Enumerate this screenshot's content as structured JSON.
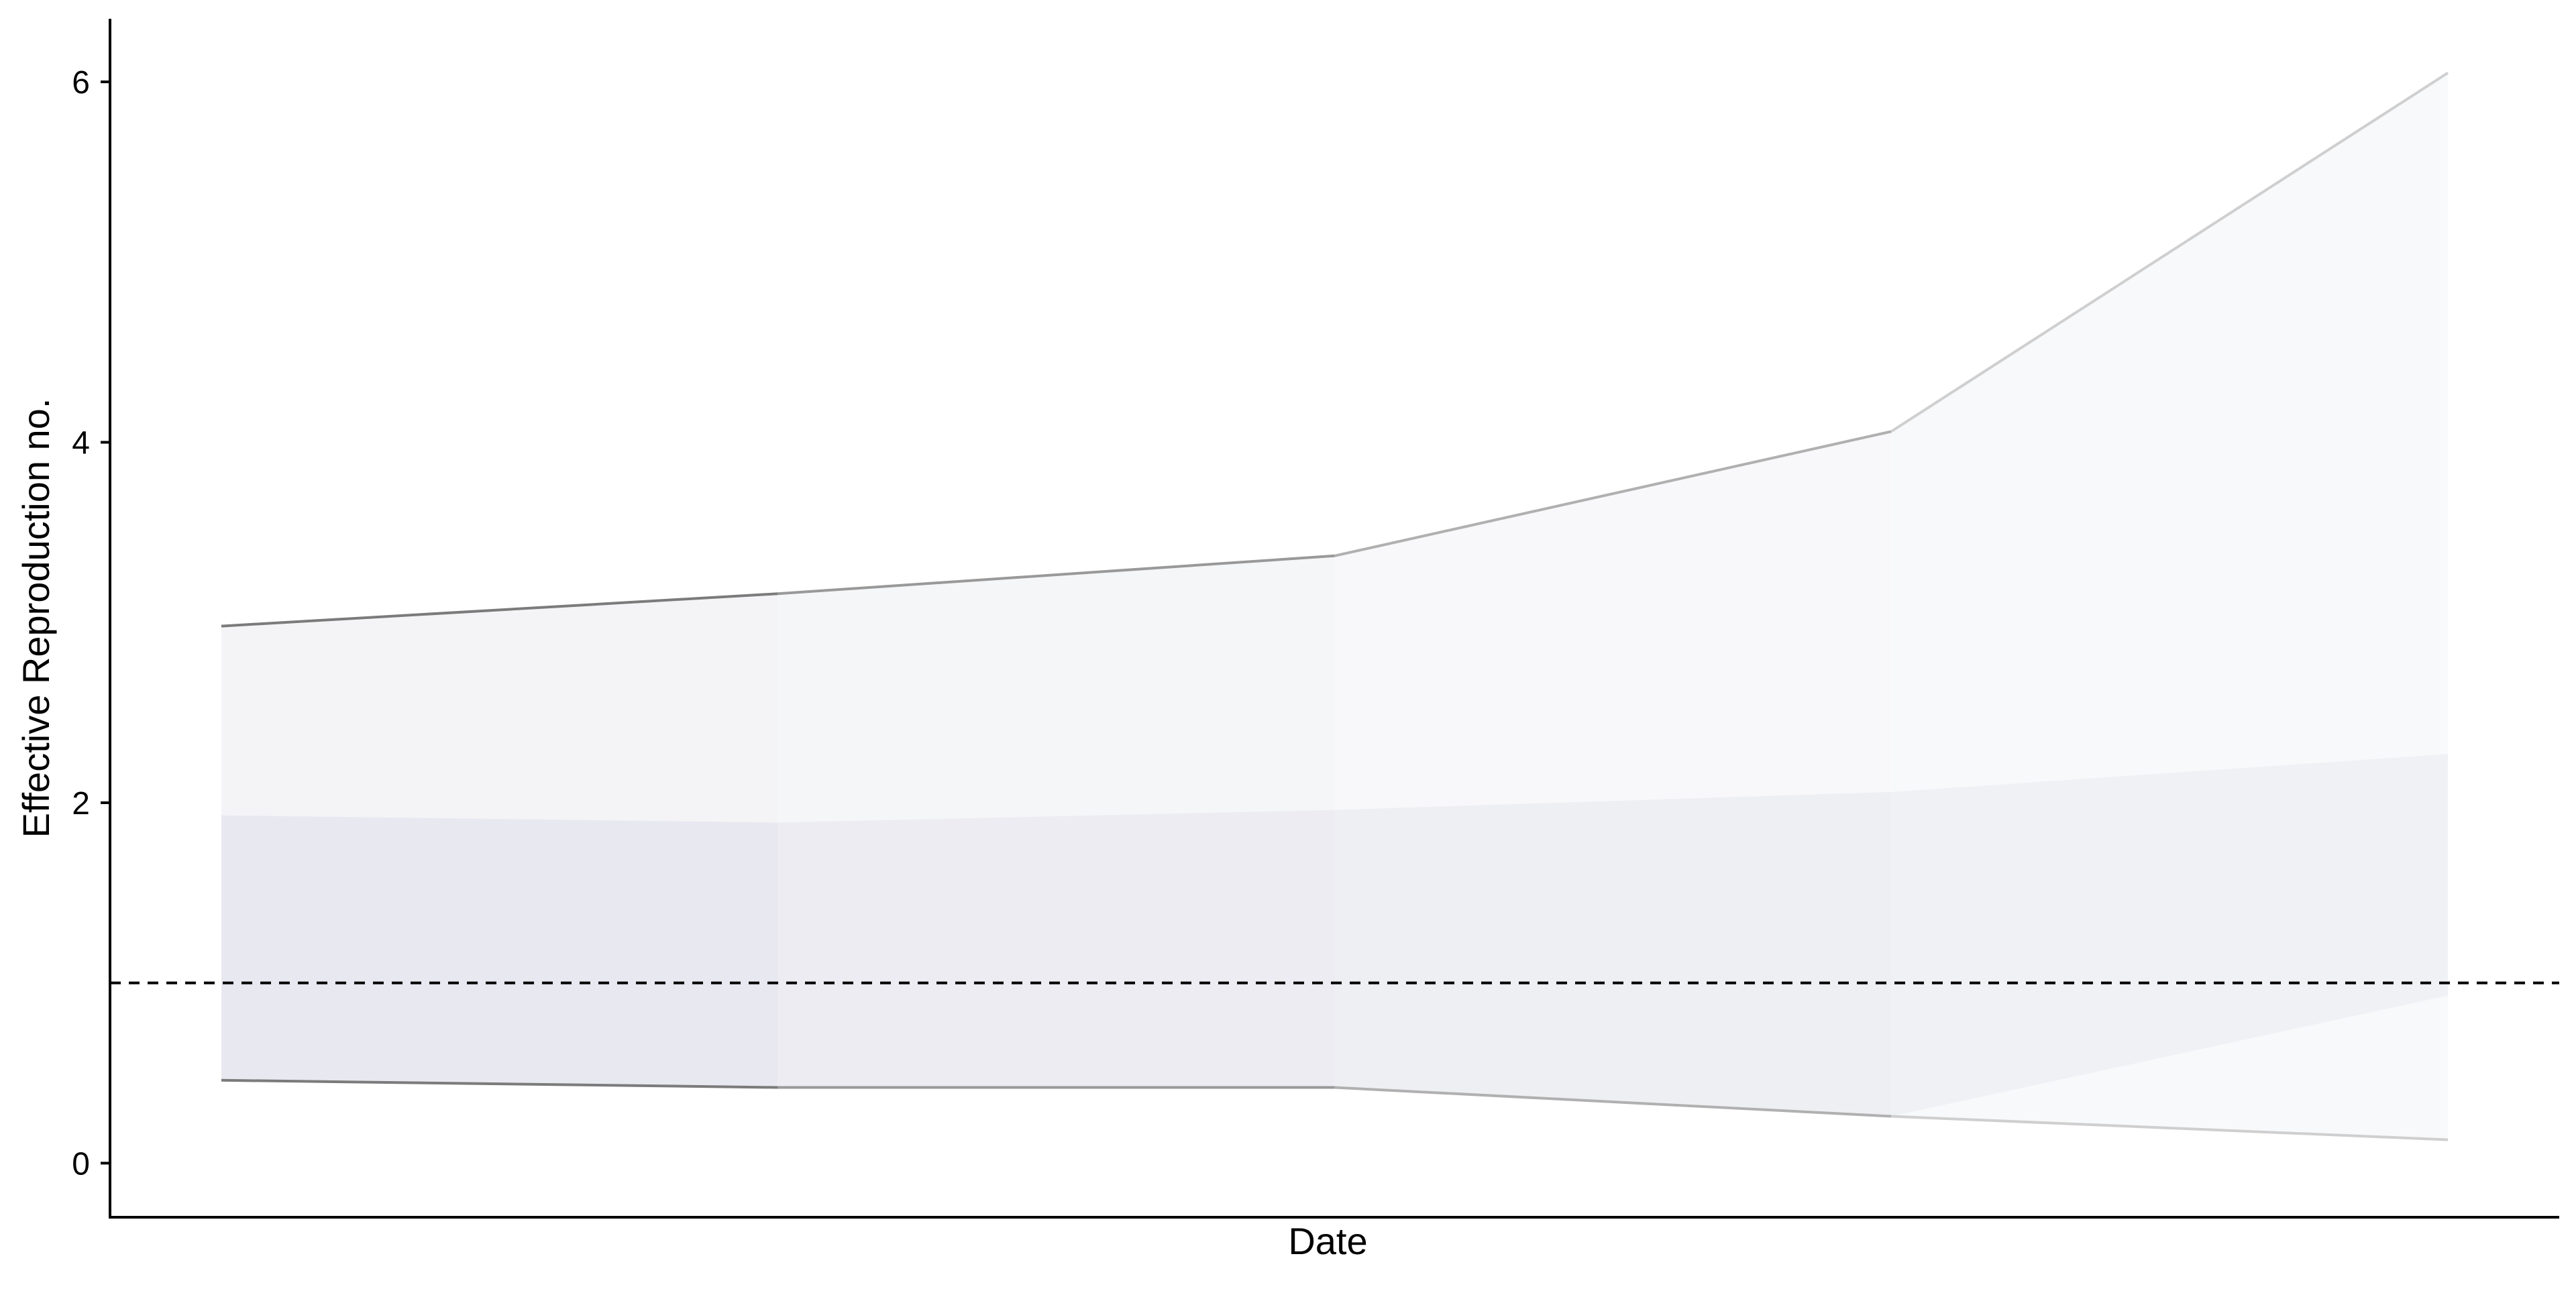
{
  "chart_data": {
    "type": "area",
    "title": "",
    "xlabel": "Date",
    "ylabel": "Effective Reproduction no.",
    "x": [
      1,
      2,
      3,
      4,
      5
    ],
    "xlim": [
      0.8,
      5.2
    ],
    "ylim": [
      -0.3,
      6.35
    ],
    "y_ticks": [
      0,
      2,
      4,
      6
    ],
    "reference_line": {
      "y": 1,
      "style": "dashed",
      "color": "#000000"
    },
    "series": [
      {
        "band": "outer",
        "upper": [
          2.98,
          3.16,
          3.37,
          4.06,
          6.05
        ],
        "lower": [
          0.46,
          0.42,
          0.42,
          0.26,
          0.13
        ],
        "fill_colors": [
          "#f4f4f7",
          "#f5f6f8",
          "#f8f8fa",
          "#f8f9fb",
          "#fafbfc"
        ],
        "line_colors": [
          "#7b7b7b",
          "#999999",
          "#b0b0b0",
          "#cfcfcf",
          "#e1e1e1"
        ]
      },
      {
        "band": "inner",
        "upper": [
          1.93,
          1.89,
          1.96,
          2.06,
          2.27
        ],
        "lower": [
          0.46,
          0.42,
          0.42,
          0.26,
          0.93
        ],
        "fill_colors": [
          "#e8e8f0",
          "#ececf2",
          "#eeeff3",
          "#f0f1f4",
          "#f3f4f6"
        ]
      }
    ],
    "grid": false,
    "legend": "none"
  }
}
